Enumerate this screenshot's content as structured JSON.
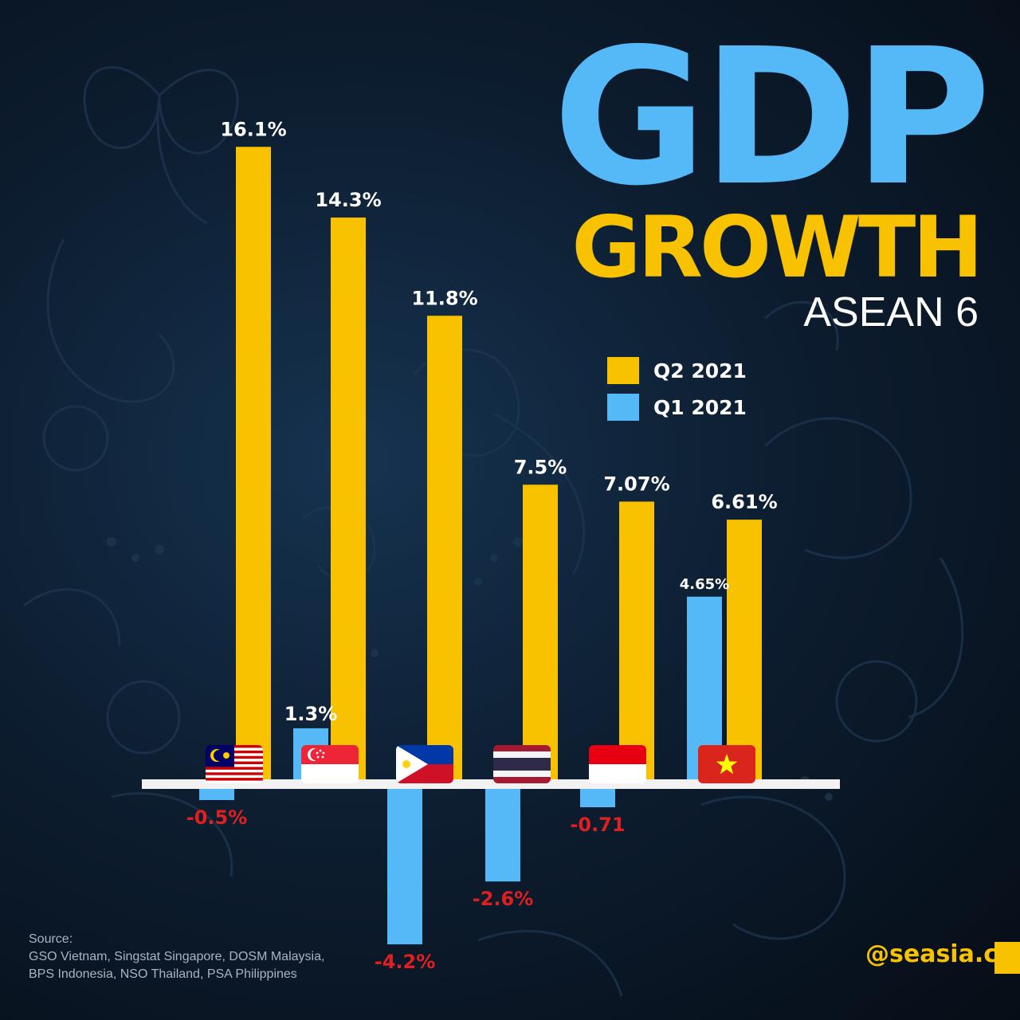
{
  "title": "GDP",
  "title_line2": "GROWTH",
  "subtitle": "ASEAN 6",
  "legend": [
    {
      "label": "Q2 2021",
      "color": "#f8c200"
    },
    {
      "label": "Q1 2021",
      "color": "#55b8f7"
    }
  ],
  "source": {
    "heading": "Source:",
    "line1": "GSO Vietnam, Singstat Singapore, DOSM Malaysia,",
    "line2": "BPS Indonesia, NSO Thailand, PSA Philippines"
  },
  "handle": "@seasia.co",
  "colors": {
    "q2": "#f8c200",
    "q1": "#55b8f7",
    "negative_label": "#e02020",
    "axis": "#f2f2f2"
  },
  "chart_data": {
    "type": "bar",
    "categories": [
      "Malaysia",
      "Singapore",
      "Philippines",
      "Thailand",
      "Indonesia",
      "Vietnam"
    ],
    "flag_icons": [
      "malaysia-flag-icon",
      "singapore-flag-icon",
      "philippines-flag-icon",
      "thailand-flag-icon",
      "indonesia-flag-icon",
      "vietnam-flag-icon"
    ],
    "series": [
      {
        "name": "Q1 2021",
        "values": [
          -0.5,
          1.3,
          -4.2,
          -2.6,
          -0.71,
          4.65
        ],
        "labels": [
          "-0.5%",
          "1.3%",
          "-4.2%",
          "-2.6%",
          "-0.71",
          "4.65%"
        ]
      },
      {
        "name": "Q2 2021",
        "values": [
          16.1,
          14.3,
          11.8,
          7.5,
          7.07,
          6.61
        ],
        "labels": [
          "16.1%",
          "14.3%",
          "11.8%",
          "7.5%",
          "7.07%",
          "6.61%"
        ]
      }
    ],
    "ylim": [
      -4.5,
      16.5
    ],
    "grid": false,
    "legend_position": "top-right"
  }
}
